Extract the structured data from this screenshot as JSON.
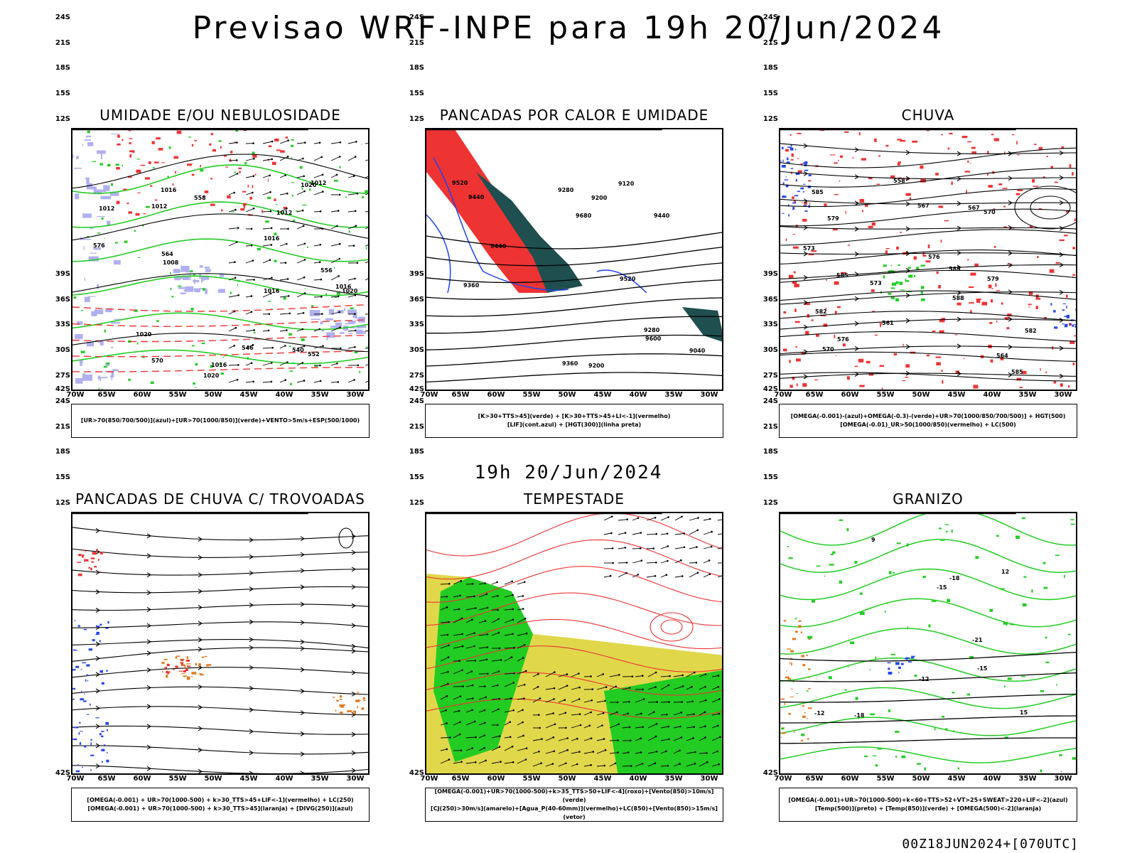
{
  "header": {
    "title": "Previsao WRF-INPE  para 19h 20/Jun/2024"
  },
  "mid_label": "19h 20/Jun/2024",
  "footer": "00Z18JUN2024+[070UTC]",
  "axes": {
    "lat_labels": [
      "12S",
      "15S",
      "18S",
      "21S",
      "24S",
      "27S",
      "30S",
      "33S",
      "36S",
      "39S",
      "42S"
    ],
    "lon_labels": [
      "70W",
      "65W",
      "60W",
      "55W",
      "50W",
      "45W",
      "40W",
      "35W",
      "30W"
    ]
  },
  "colors": {
    "red": "#ee3333",
    "green": "#22cc22",
    "blue": "#2244ee",
    "lightblue": "#b0b0f0",
    "orange": "#e07a20",
    "yellow": "#e0d84a",
    "teal": "#1f4f4f",
    "black": "#000000"
  },
  "panels": [
    {
      "id": "umidade",
      "title": "UMIDADE E/OU NEBULOSIDADE",
      "legend": [
        "[UR>70(850/700/500)](azul)+[UR>70(1000/850)](verde)+VENTO>5m/s+ESP(500/1000)"
      ],
      "contour_labels": [
        "1012",
        "1012",
        "1016",
        "1016",
        "1020",
        "1020",
        "1016",
        "1008",
        "1012",
        "1020",
        "1016",
        "1016",
        "1012",
        "1020",
        "576",
        "570",
        "564",
        "558",
        "552",
        "546",
        "540",
        "556"
      ]
    },
    {
      "id": "pancadas_calor",
      "title": "PANCADAS POR CALOR E UMIDADE",
      "legend": [
        "[K>30+TTS>45](verde) + [K>30+TTS>45+LI<-1](vermelho)",
        "[LIF](cont.azul) + [HGT(300)](linha preta)"
      ],
      "contour_labels": [
        "9680",
        "9600",
        "9520",
        "9440",
        "9360",
        "9280",
        "9200",
        "9120",
        "9440",
        "9360",
        "9280",
        "9200",
        "9520",
        "9440",
        "9040"
      ]
    },
    {
      "id": "chuva",
      "title": "CHUVA",
      "legend": [
        "[OMEGA(-0.001)-(azul)+OMEGA(-0.3)-(verde)+UR>70(1000/850/700/500)] + HGT(500)",
        "[OMEGA(-0.01)_UR>50(1000/850)(vermelho) + LC(500)"
      ],
      "contour_labels": [
        "585",
        "585",
        "588",
        "585",
        "582",
        "579",
        "576",
        "573",
        "570",
        "567",
        "567",
        "564",
        "561",
        "558",
        "585",
        "582",
        "579",
        "576",
        "573",
        "570"
      ]
    },
    {
      "id": "pancadas_trovoadas",
      "title": "PANCADAS DE CHUVA C/ TROVOADAS",
      "legend": [
        "[OMEGA(-0.001) + UR>70(1000-500) + k>30_TTS>45+LIF<-1](vermelho) + LC(250)",
        "[OMEGA(-0.001) + UR>70(1000-500) + k>30_TTS>45](laranja) + [DIVG(250)](azul)"
      ],
      "contour_labels": []
    },
    {
      "id": "tempestade",
      "title": "TEMPESTADE",
      "legend": [
        "[OMEGA(-0.001)+UR>70(1000-500)+k>35_TTS>50+LIF<-4](roxo)+[Vento(850)>10m/s](verde)",
        "[CJ(250)>30m/s](amarelo)+[Agua_P(40-60mm)](vermelho)+LC(850)+[Vento(850)>15m/s](vetor)"
      ],
      "contour_labels": []
    },
    {
      "id": "granizo",
      "title": "GRANIZO",
      "legend": [
        "[OMEGA(-0.001)+UR>70(1000-500)+k<60+TTS>52+VT>25+SWEAT>220+LIF<-2](azul)",
        "[Temp(500)](preto) + [Temp(850)](verde) + [OMEGA(500)<-2](laranja)"
      ],
      "contour_labels": [
        "-12",
        "-15",
        "-18",
        "-21",
        "15",
        "12",
        "9",
        "-12",
        "-15",
        "-18"
      ]
    }
  ]
}
